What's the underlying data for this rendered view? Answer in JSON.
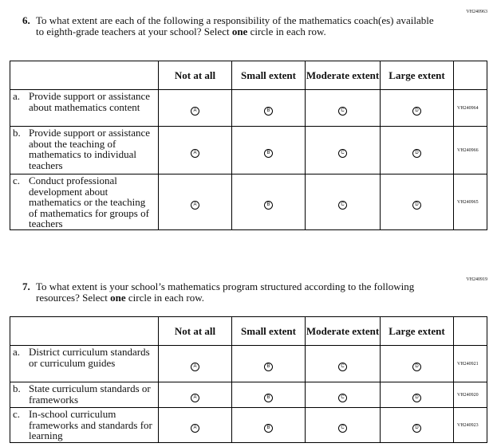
{
  "questions": [
    {
      "code": "VH240963",
      "number": "6.",
      "text_before": "To what extent are each of the following a responsibility of the mathematics coach(es) available to eighth-grade teachers at your school? Select ",
      "emphasis": "one",
      "text_after": " circle in each row.",
      "columns": [
        "Not at all",
        "Small extent",
        "Moderate extent",
        "Large extent"
      ],
      "options": [
        "A",
        "B",
        "C",
        "D"
      ],
      "rows": [
        {
          "letter": "a.",
          "text": "Provide support or assistance about mathematics content",
          "code": "VH240964"
        },
        {
          "letter": "b.",
          "text": "Provide support or assistance about the teaching of mathematics to individual teachers",
          "code": "VH240966"
        },
        {
          "letter": "c.",
          "text": "Conduct professional development about mathematics or the teaching of mathematics for groups of teachers",
          "code": "VH240965"
        }
      ]
    },
    {
      "code": "VH240919",
      "number": "7.",
      "text_before": "To what extent is your school’s mathematics program structured according to the following resources? Select ",
      "emphasis": "one",
      "text_after": " circle in each row.",
      "columns": [
        "Not at all",
        "Small extent",
        "Moderate extent",
        "Large extent"
      ],
      "options": [
        "A",
        "B",
        "C",
        "D"
      ],
      "rows": [
        {
          "letter": "a.",
          "text": "District curriculum standards or curriculum guides",
          "code": "VH240921"
        },
        {
          "letter": "b.",
          "text": "State curriculum standards or frameworks",
          "code": "VH240920"
        },
        {
          "letter": "c.",
          "text": "In-school curriculum frameworks and standards for learning",
          "code": "VH240923"
        }
      ]
    }
  ]
}
